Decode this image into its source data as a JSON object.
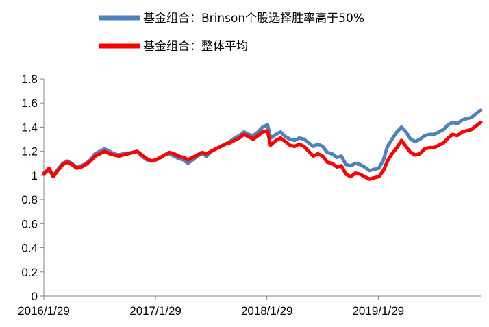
{
  "chart_data": {
    "type": "line",
    "title": "",
    "xlabel": "",
    "ylabel": "",
    "ylim": [
      0,
      1.8
    ],
    "y_ticks": [
      "0",
      "0.2",
      "0.4",
      "0.6",
      "0.8",
      "1",
      "1.2",
      "1.4",
      "1.6",
      "1.8"
    ],
    "x_ticks": [
      "2016/1/29",
      "2017/1/29",
      "2018/1/29",
      "2019/1/29"
    ],
    "x_range": [
      "2016-01-29",
      "2019-12-31"
    ],
    "grid": false,
    "legend_position": "top",
    "series": [
      {
        "name": "基金组合：Brinson个股选择胜率高于50%",
        "color": "#4F81BD",
        "points": [
          [
            "2016-01-29",
            1.02
          ],
          [
            "2016-02-15",
            1.04
          ],
          [
            "2016-02-29",
            1.0
          ],
          [
            "2016-03-15",
            1.05
          ],
          [
            "2016-03-31",
            1.1
          ],
          [
            "2016-04-15",
            1.12
          ],
          [
            "2016-04-30",
            1.1
          ],
          [
            "2016-05-15",
            1.07
          ],
          [
            "2016-05-31",
            1.08
          ],
          [
            "2016-06-15",
            1.1
          ],
          [
            "2016-06-30",
            1.13
          ],
          [
            "2016-07-15",
            1.18
          ],
          [
            "2016-07-31",
            1.2
          ],
          [
            "2016-08-15",
            1.22
          ],
          [
            "2016-08-31",
            1.2
          ],
          [
            "2016-09-15",
            1.18
          ],
          [
            "2016-09-30",
            1.17
          ],
          [
            "2016-10-15",
            1.18
          ],
          [
            "2016-10-31",
            1.18
          ],
          [
            "2016-11-15",
            1.19
          ],
          [
            "2016-11-30",
            1.2
          ],
          [
            "2016-12-15",
            1.16
          ],
          [
            "2016-12-31",
            1.13
          ],
          [
            "2017-01-15",
            1.12
          ],
          [
            "2017-01-31",
            1.13
          ],
          [
            "2017-02-15",
            1.15
          ],
          [
            "2017-02-28",
            1.17
          ],
          [
            "2017-03-15",
            1.18
          ],
          [
            "2017-03-31",
            1.16
          ],
          [
            "2017-04-15",
            1.14
          ],
          [
            "2017-04-30",
            1.13
          ],
          [
            "2017-05-15",
            1.1
          ],
          [
            "2017-05-31",
            1.13
          ],
          [
            "2017-06-15",
            1.16
          ],
          [
            "2017-06-30",
            1.18
          ],
          [
            "2017-07-15",
            1.16
          ],
          [
            "2017-07-31",
            1.2
          ],
          [
            "2017-08-15",
            1.22
          ],
          [
            "2017-08-31",
            1.24
          ],
          [
            "2017-09-15",
            1.26
          ],
          [
            "2017-09-30",
            1.28
          ],
          [
            "2017-10-15",
            1.31
          ],
          [
            "2017-10-31",
            1.33
          ],
          [
            "2017-11-15",
            1.36
          ],
          [
            "2017-11-30",
            1.34
          ],
          [
            "2017-12-15",
            1.33
          ],
          [
            "2017-12-31",
            1.36
          ],
          [
            "2018-01-15",
            1.4
          ],
          [
            "2018-01-31",
            1.42
          ],
          [
            "2018-02-10",
            1.31
          ],
          [
            "2018-02-28",
            1.34
          ],
          [
            "2018-03-15",
            1.36
          ],
          [
            "2018-03-31",
            1.32
          ],
          [
            "2018-04-15",
            1.3
          ],
          [
            "2018-04-30",
            1.29
          ],
          [
            "2018-05-15",
            1.31
          ],
          [
            "2018-05-31",
            1.3
          ],
          [
            "2018-06-15",
            1.27
          ],
          [
            "2018-06-30",
            1.24
          ],
          [
            "2018-07-15",
            1.26
          ],
          [
            "2018-07-31",
            1.24
          ],
          [
            "2018-08-15",
            1.19
          ],
          [
            "2018-08-31",
            1.18
          ],
          [
            "2018-09-15",
            1.15
          ],
          [
            "2018-09-30",
            1.16
          ],
          [
            "2018-10-15",
            1.09
          ],
          [
            "2018-10-31",
            1.08
          ],
          [
            "2018-11-15",
            1.1
          ],
          [
            "2018-11-30",
            1.09
          ],
          [
            "2018-12-15",
            1.07
          ],
          [
            "2018-12-31",
            1.04
          ],
          [
            "2019-01-15",
            1.05
          ],
          [
            "2019-01-31",
            1.06
          ],
          [
            "2019-02-15",
            1.13
          ],
          [
            "2019-02-28",
            1.24
          ],
          [
            "2019-03-15",
            1.3
          ],
          [
            "2019-03-31",
            1.36
          ],
          [
            "2019-04-15",
            1.4
          ],
          [
            "2019-04-30",
            1.36
          ],
          [
            "2019-05-15",
            1.3
          ],
          [
            "2019-05-31",
            1.28
          ],
          [
            "2019-06-15",
            1.3
          ],
          [
            "2019-06-30",
            1.33
          ],
          [
            "2019-07-15",
            1.34
          ],
          [
            "2019-07-31",
            1.34
          ],
          [
            "2019-08-15",
            1.36
          ],
          [
            "2019-08-31",
            1.38
          ],
          [
            "2019-09-15",
            1.42
          ],
          [
            "2019-09-30",
            1.44
          ],
          [
            "2019-10-15",
            1.43
          ],
          [
            "2019-10-31",
            1.46
          ],
          [
            "2019-11-15",
            1.47
          ],
          [
            "2019-11-30",
            1.48
          ],
          [
            "2019-12-15",
            1.51
          ],
          [
            "2019-12-31",
            1.54
          ]
        ]
      },
      {
        "name": "基金组合：整体平均",
        "color": "#FF0000",
        "points": [
          [
            "2016-01-29",
            1.01
          ],
          [
            "2016-02-15",
            1.06
          ],
          [
            "2016-02-29",
            0.99
          ],
          [
            "2016-03-15",
            1.04
          ],
          [
            "2016-03-31",
            1.09
          ],
          [
            "2016-04-15",
            1.11
          ],
          [
            "2016-04-30",
            1.09
          ],
          [
            "2016-05-15",
            1.06
          ],
          [
            "2016-05-31",
            1.07
          ],
          [
            "2016-06-15",
            1.09
          ],
          [
            "2016-06-30",
            1.12
          ],
          [
            "2016-07-15",
            1.16
          ],
          [
            "2016-07-31",
            1.18
          ],
          [
            "2016-08-15",
            1.2
          ],
          [
            "2016-08-31",
            1.18
          ],
          [
            "2016-09-15",
            1.17
          ],
          [
            "2016-09-30",
            1.16
          ],
          [
            "2016-10-15",
            1.17
          ],
          [
            "2016-10-31",
            1.18
          ],
          [
            "2016-11-15",
            1.19
          ],
          [
            "2016-11-30",
            1.2
          ],
          [
            "2016-12-15",
            1.17
          ],
          [
            "2016-12-31",
            1.14
          ],
          [
            "2017-01-15",
            1.12
          ],
          [
            "2017-01-31",
            1.13
          ],
          [
            "2017-02-15",
            1.15
          ],
          [
            "2017-02-28",
            1.17
          ],
          [
            "2017-03-15",
            1.19
          ],
          [
            "2017-03-31",
            1.18
          ],
          [
            "2017-04-15",
            1.16
          ],
          [
            "2017-04-30",
            1.15
          ],
          [
            "2017-05-15",
            1.13
          ],
          [
            "2017-05-31",
            1.15
          ],
          [
            "2017-06-15",
            1.17
          ],
          [
            "2017-06-30",
            1.19
          ],
          [
            "2017-07-15",
            1.18
          ],
          [
            "2017-07-31",
            1.2
          ],
          [
            "2017-08-15",
            1.22
          ],
          [
            "2017-08-31",
            1.24
          ],
          [
            "2017-09-15",
            1.26
          ],
          [
            "2017-09-30",
            1.27
          ],
          [
            "2017-10-15",
            1.29
          ],
          [
            "2017-10-31",
            1.31
          ],
          [
            "2017-11-15",
            1.34
          ],
          [
            "2017-11-30",
            1.32
          ],
          [
            "2017-12-15",
            1.3
          ],
          [
            "2017-12-31",
            1.33
          ],
          [
            "2018-01-15",
            1.36
          ],
          [
            "2018-01-31",
            1.37
          ],
          [
            "2018-02-10",
            1.25
          ],
          [
            "2018-02-28",
            1.29
          ],
          [
            "2018-03-15",
            1.31
          ],
          [
            "2018-03-31",
            1.28
          ],
          [
            "2018-04-15",
            1.25
          ],
          [
            "2018-04-30",
            1.24
          ],
          [
            "2018-05-15",
            1.26
          ],
          [
            "2018-05-31",
            1.24
          ],
          [
            "2018-06-15",
            1.2
          ],
          [
            "2018-06-30",
            1.16
          ],
          [
            "2018-07-15",
            1.18
          ],
          [
            "2018-07-31",
            1.16
          ],
          [
            "2018-08-15",
            1.11
          ],
          [
            "2018-08-31",
            1.1
          ],
          [
            "2018-09-15",
            1.07
          ],
          [
            "2018-09-30",
            1.08
          ],
          [
            "2018-10-15",
            1.01
          ],
          [
            "2018-10-31",
            0.99
          ],
          [
            "2018-11-15",
            1.02
          ],
          [
            "2018-11-30",
            1.01
          ],
          [
            "2018-12-15",
            0.99
          ],
          [
            "2018-12-31",
            0.97
          ],
          [
            "2019-01-15",
            0.98
          ],
          [
            "2019-01-31",
            0.99
          ],
          [
            "2019-02-15",
            1.04
          ],
          [
            "2019-02-28",
            1.12
          ],
          [
            "2019-03-15",
            1.18
          ],
          [
            "2019-03-31",
            1.23
          ],
          [
            "2019-04-15",
            1.29
          ],
          [
            "2019-04-30",
            1.24
          ],
          [
            "2019-05-15",
            1.19
          ],
          [
            "2019-05-31",
            1.17
          ],
          [
            "2019-06-15",
            1.18
          ],
          [
            "2019-06-30",
            1.22
          ],
          [
            "2019-07-15",
            1.23
          ],
          [
            "2019-07-31",
            1.23
          ],
          [
            "2019-08-15",
            1.25
          ],
          [
            "2019-08-31",
            1.27
          ],
          [
            "2019-09-15",
            1.31
          ],
          [
            "2019-09-30",
            1.34
          ],
          [
            "2019-10-15",
            1.33
          ],
          [
            "2019-10-31",
            1.36
          ],
          [
            "2019-11-15",
            1.37
          ],
          [
            "2019-11-30",
            1.38
          ],
          [
            "2019-12-15",
            1.41
          ],
          [
            "2019-12-31",
            1.44
          ]
        ]
      }
    ]
  }
}
